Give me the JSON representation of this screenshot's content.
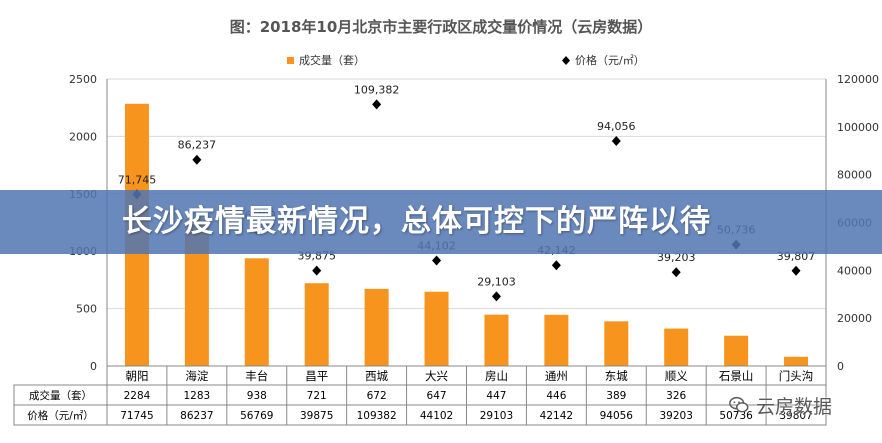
{
  "colors": {
    "bar": "#F7941D",
    "marker": "#000000",
    "banner": "#5276B2",
    "grid": "#d9d9d9"
  },
  "banner": {
    "text": "长沙疫情最新情况，总体可控下的严阵以待"
  },
  "watermark": {
    "text": "云房数据",
    "icon": "wechat-icon"
  },
  "chart_data": {
    "type": "bar",
    "title": "图：2018年10月北京市主要行政区成交量价情况（云房数据）",
    "categories": [
      "朝阳",
      "海淀",
      "丰台",
      "昌平",
      "西城",
      "大兴",
      "房山",
      "通州",
      "东城",
      "顺义",
      "石景山",
      "门头沟"
    ],
    "series": [
      {
        "name": "成交量（套）",
        "kind": "bar",
        "axis": "left",
        "values": [
          2284,
          1283,
          938,
          721,
          672,
          647,
          447,
          446,
          389,
          326,
          264,
          80
        ]
      },
      {
        "name": "价格（元/㎡）",
        "kind": "scatter",
        "axis": "right",
        "marker": "diamond",
        "values": [
          71745,
          86237,
          56769,
          39875,
          109382,
          44102,
          29103,
          42142,
          94056,
          39203,
          50736,
          39807
        ]
      }
    ],
    "point_labels": [
      "71,745",
      "86,237",
      "56,769",
      "39,875",
      "109,382",
      "44,102",
      "29,103",
      "42,142",
      "94,056",
      "39,203",
      "50,736",
      "39,807"
    ],
    "y_left": {
      "ticks": [
        0,
        500,
        1000,
        1500,
        2000,
        2500
      ],
      "ylim": [
        0,
        2500
      ]
    },
    "y_right": {
      "ticks": [
        0,
        20000,
        40000,
        60000,
        80000,
        100000,
        120000
      ],
      "ylim": [
        0,
        120000
      ]
    },
    "legend": {
      "placement": "top",
      "entries": [
        "成交量（套）",
        "价格（元/㎡）"
      ]
    },
    "data_table": {
      "rows": [
        {
          "label": "成交量（套）",
          "cells": [
            "2284",
            "1283",
            "938",
            "721",
            "672",
            "647",
            "447",
            "446",
            "389",
            "326",
            "",
            ""
          ]
        },
        {
          "label": "价格（元/㎡）",
          "cells": [
            "71745",
            "86237",
            "56769",
            "39875",
            "109382",
            "44102",
            "29103",
            "42142",
            "94056",
            "39203",
            "50736",
            "39807"
          ]
        }
      ]
    },
    "grid": true
  }
}
